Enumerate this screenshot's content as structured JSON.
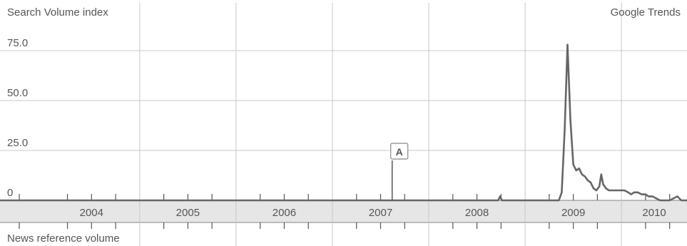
{
  "chart_data": {
    "type": "line",
    "title": "",
    "ylabel": "Search Volume index",
    "brand": "Google Trends",
    "footer_label": "News reference volume",
    "ylim": [
      0,
      86
    ],
    "yticks": [
      0,
      25,
      50,
      75
    ],
    "ytick_labels": [
      "0",
      "25.0",
      "50.0",
      "75.0"
    ],
    "xlim": [
      2003.55,
      2010.68
    ],
    "years": [
      "2004",
      "2005",
      "2006",
      "2007",
      "2008",
      "2009",
      "2010"
    ],
    "grid": true,
    "annotation": {
      "label": "A",
      "x": 2007.62,
      "y": 20
    },
    "series": [
      {
        "color": "#666666",
        "points": [
          [
            2003.55,
            0
          ],
          [
            2008.72,
            0
          ],
          [
            2008.74,
            2
          ],
          [
            2008.76,
            0
          ],
          [
            2009.35,
            0
          ],
          [
            2009.38,
            4
          ],
          [
            2009.41,
            35
          ],
          [
            2009.44,
            78
          ],
          [
            2009.47,
            40
          ],
          [
            2009.5,
            18
          ],
          [
            2009.53,
            15
          ],
          [
            2009.56,
            16
          ],
          [
            2009.59,
            13
          ],
          [
            2009.62,
            12
          ],
          [
            2009.65,
            10
          ],
          [
            2009.68,
            9
          ],
          [
            2009.71,
            6
          ],
          [
            2009.74,
            5
          ],
          [
            2009.77,
            7
          ],
          [
            2009.79,
            13
          ],
          [
            2009.81,
            8
          ],
          [
            2009.84,
            6
          ],
          [
            2009.87,
            5
          ],
          [
            2009.9,
            5
          ],
          [
            2009.94,
            5
          ],
          [
            2009.98,
            5
          ],
          [
            2010.03,
            5
          ],
          [
            2010.07,
            4
          ],
          [
            2010.1,
            3
          ],
          [
            2010.13,
            4
          ],
          [
            2010.17,
            4
          ],
          [
            2010.21,
            3
          ],
          [
            2010.25,
            3
          ],
          [
            2010.28,
            2
          ],
          [
            2010.32,
            2
          ],
          [
            2010.36,
            1
          ],
          [
            2010.4,
            0
          ],
          [
            2010.44,
            0
          ],
          [
            2010.5,
            0
          ],
          [
            2010.58,
            2
          ],
          [
            2010.62,
            0
          ],
          [
            2010.68,
            0
          ]
        ]
      }
    ]
  }
}
